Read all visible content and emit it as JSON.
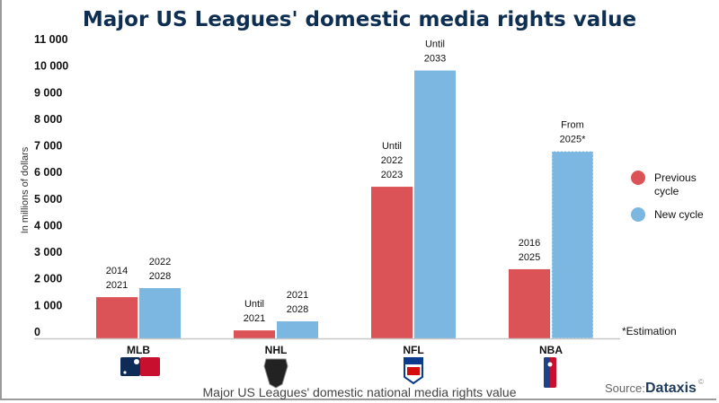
{
  "chart_data": {
    "type": "bar",
    "title": "Major US Leagues' domestic media rights value",
    "xlabel": "Major US Leagues' domestic national media rights value",
    "ylabel": "In millions of dollars",
    "ylim": [
      0,
      11000
    ],
    "yticks": [
      "0",
      "1 000",
      "2 000",
      "3 000",
      "4 000",
      "5 000",
      "6 000",
      "7 000",
      "8 000",
      "9 000",
      "10 000",
      "11 000"
    ],
    "ytick_values": [
      0,
      1000,
      2000,
      3000,
      4000,
      5000,
      6000,
      7000,
      8000,
      9000,
      10000,
      11000
    ],
    "grid": false,
    "legend_position": "right",
    "categories": [
      "MLB",
      "NHL",
      "NFL",
      "NBA"
    ],
    "series": [
      {
        "name": "Previous cycle",
        "color": "#dc5357",
        "values": [
          1550,
          300,
          5700,
          2600
        ],
        "labels": [
          [
            "2014",
            "2021"
          ],
          [
            "Until",
            "2021"
          ],
          [
            "Until",
            "2022",
            "2023"
          ],
          [
            "2016",
            "2025"
          ]
        ]
      },
      {
        "name": "New cycle",
        "color": "#7bb7e1",
        "values": [
          1890,
          640,
          10070,
          7030
        ],
        "labels": [
          [
            "2022",
            "2028"
          ],
          [
            "2021",
            "2028"
          ],
          [
            "Until",
            "2033"
          ],
          [
            "From",
            "2025*"
          ]
        ],
        "estimated": [
          false,
          false,
          false,
          true
        ]
      }
    ],
    "legend": [
      "Previous",
      "cycle",
      "New cycle"
    ],
    "footnote": "*Estimation",
    "logos": [
      "mlb-logo",
      "nhl-logo",
      "nfl-logo",
      "nba-logo"
    ]
  },
  "source": {
    "label": "Source:",
    "brand": "Dataxis",
    "mark": "©"
  }
}
